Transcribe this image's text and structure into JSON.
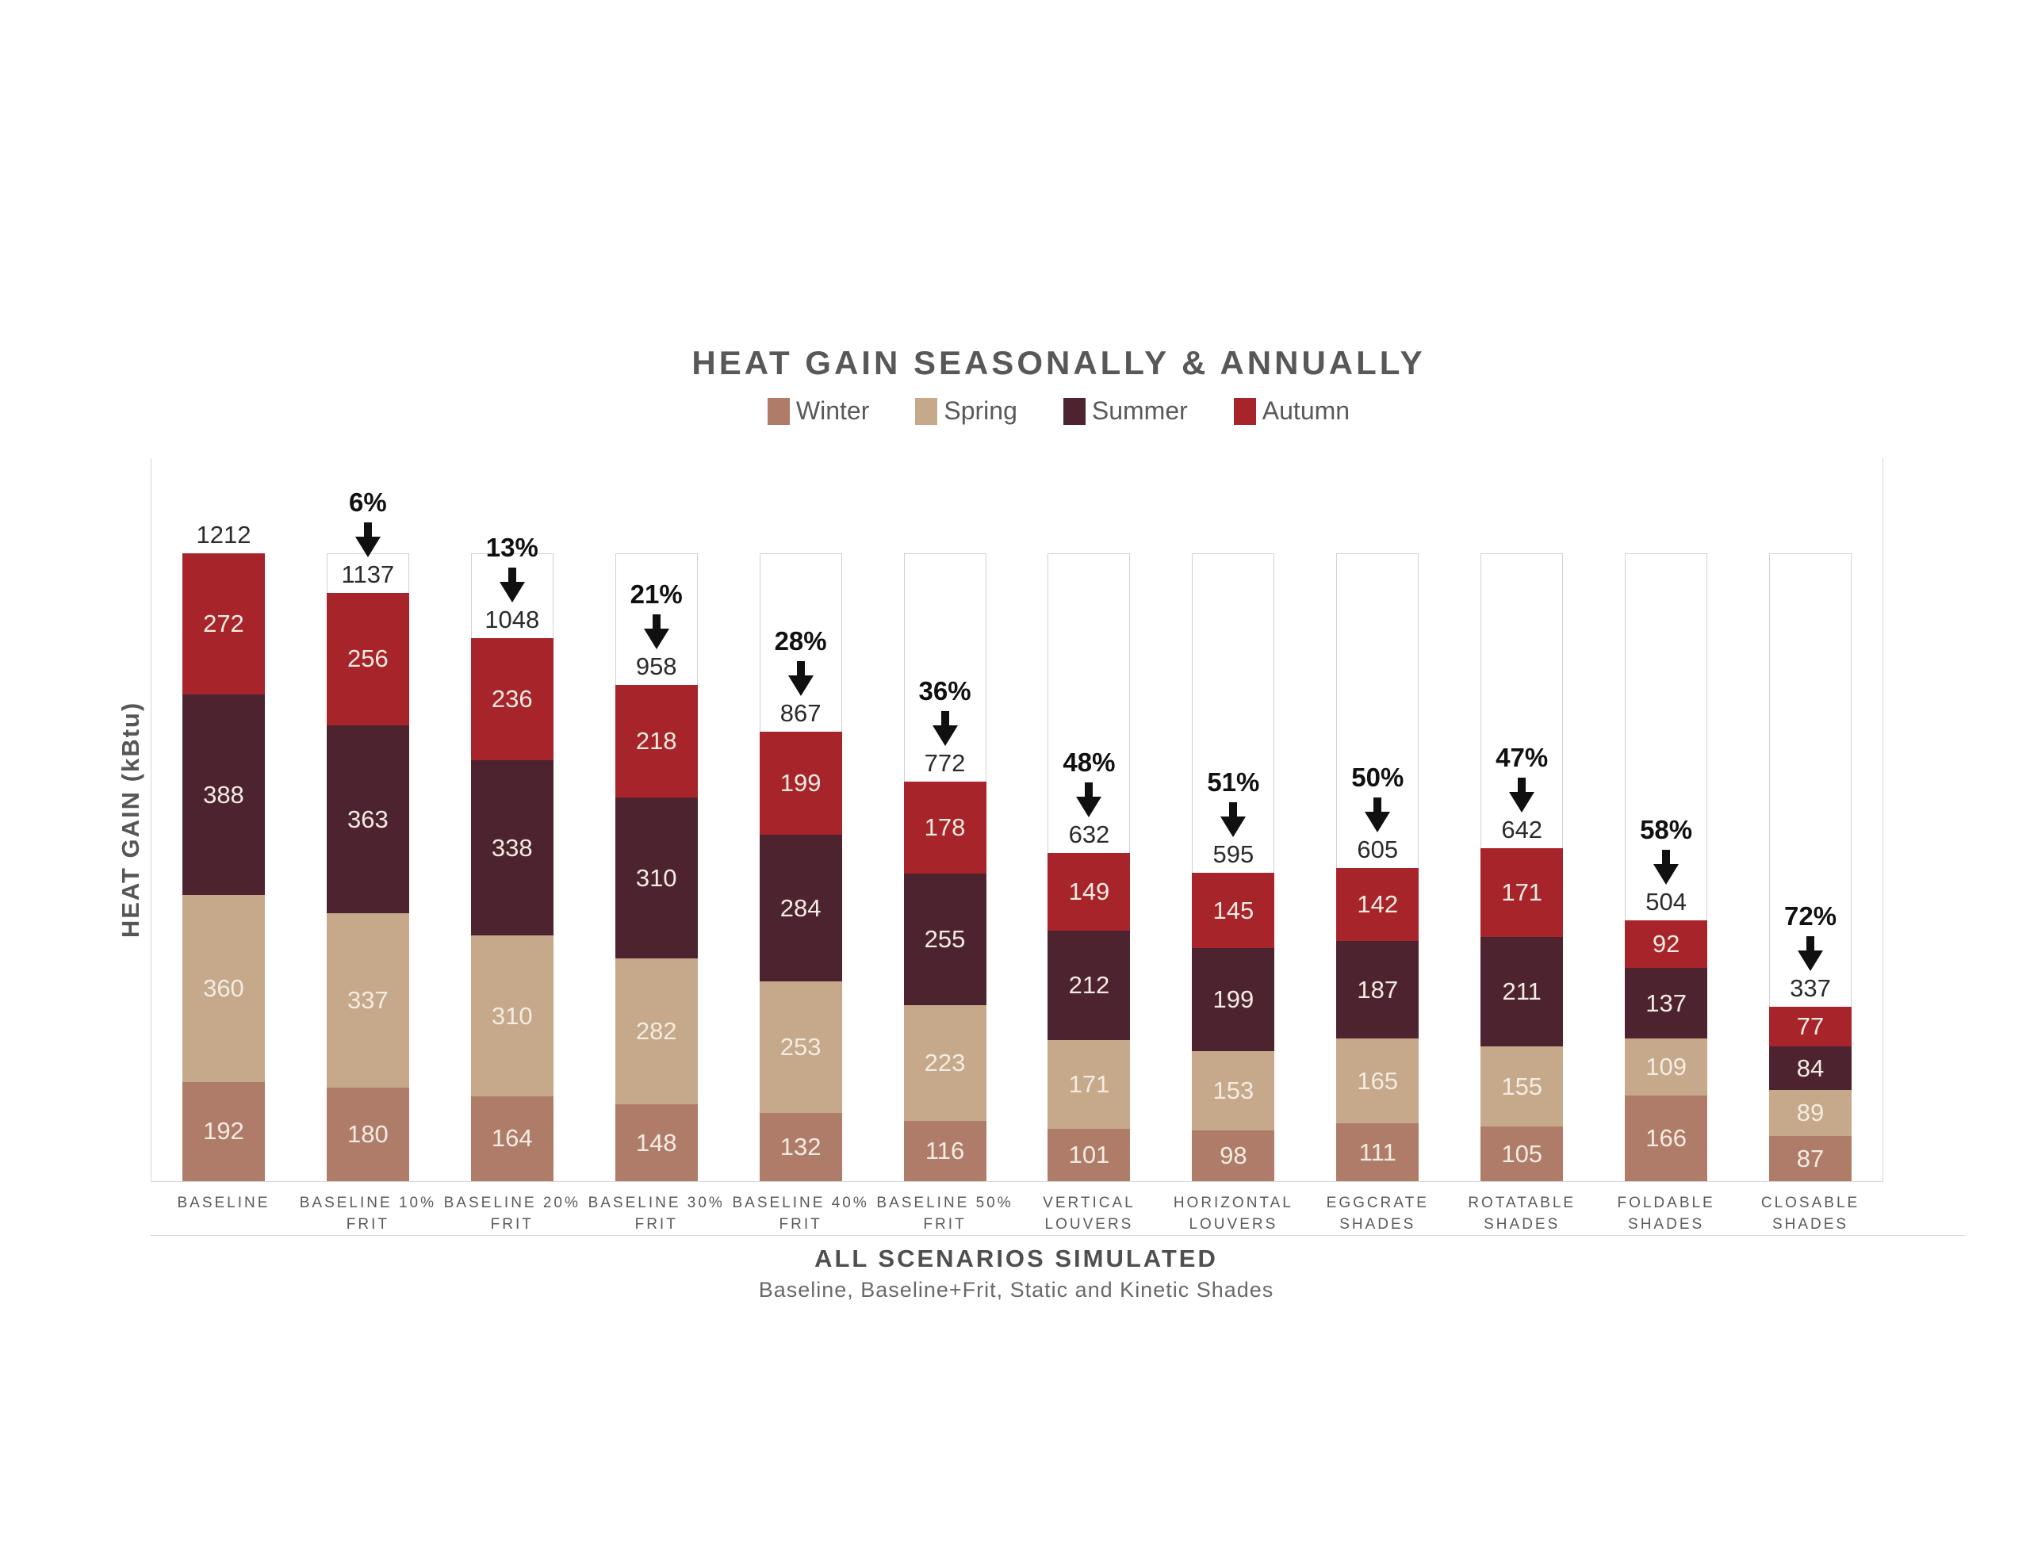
{
  "header": {
    "title": "HEAT GAIN SEASONALLY & ANNUALLY"
  },
  "legend": {
    "items": [
      {
        "label": "Winter",
        "color": "#B07C6A"
      },
      {
        "label": "Spring",
        "color": "#C6A88A"
      },
      {
        "label": "Summer",
        "color": "#4E2330"
      },
      {
        "label": "Autumn",
        "color": "#A8242B"
      }
    ]
  },
  "y_axis": {
    "label": "HEAT GAIN (kBtu)"
  },
  "x_axis": {
    "title": "ALL SCENARIOS SIMULATED",
    "subtitle": "Baseline, Baseline+Frit, Static and Kinetic Shades"
  },
  "chart_data": {
    "type": "bar",
    "stacked": true,
    "title": "HEAT GAIN SEASONALLY & ANNUALLY",
    "xlabel": "ALL SCENARIOS SIMULATED",
    "ylabel": "HEAT GAIN (kBtu)",
    "ylim": [
      0,
      1212
    ],
    "grid": false,
    "legend_position": "top",
    "categories": [
      "BASELINE",
      "BASELINE 10% FRIT",
      "BASELINE 20% FRIT",
      "BASELINE 30% FRIT",
      "BASELINE 40% FRIT",
      "BASELINE 50% FRIT",
      "VERTICAL LOUVERS",
      "HORIZONTAL LOUVERS",
      "EGGCRATE SHADES",
      "ROTATABLE SHADES",
      "FOLDABLE SHADES",
      "CLOSABLE SHADES"
    ],
    "category_lines": [
      [
        "BASELINE"
      ],
      [
        "BASELINE 10%",
        "FRIT"
      ],
      [
        "BASELINE 20%",
        "FRIT"
      ],
      [
        "BASELINE 30%",
        "FRIT"
      ],
      [
        "BASELINE 40%",
        "FRIT"
      ],
      [
        "BASELINE 50%",
        "FRIT"
      ],
      [
        "VERTICAL",
        "LOUVERS"
      ],
      [
        "HORIZONTAL",
        "LOUVERS"
      ],
      [
        "EGGCRATE",
        "SHADES"
      ],
      [
        "ROTATABLE",
        "SHADES"
      ],
      [
        "FOLDABLE",
        "SHADES"
      ],
      [
        "CLOSABLE",
        "SHADES"
      ]
    ],
    "series": [
      {
        "name": "Winter",
        "color": "#B07C6A",
        "values": [
          192,
          180,
          164,
          148,
          132,
          116,
          101,
          98,
          111,
          105,
          166,
          87
        ]
      },
      {
        "name": "Spring",
        "color": "#C6A88A",
        "values": [
          360,
          337,
          310,
          282,
          253,
          223,
          171,
          153,
          165,
          155,
          109,
          89
        ]
      },
      {
        "name": "Summer",
        "color": "#4E2330",
        "values": [
          388,
          363,
          338,
          310,
          284,
          255,
          212,
          199,
          187,
          211,
          137,
          84
        ]
      },
      {
        "name": "Autumn",
        "color": "#A8242B",
        "values": [
          272,
          256,
          236,
          218,
          199,
          178,
          149,
          145,
          142,
          171,
          92,
          77
        ]
      }
    ],
    "totals": [
      1212,
      1137,
      1048,
      958,
      867,
      772,
      632,
      595,
      605,
      642,
      504,
      337
    ],
    "reduction_labels": [
      "",
      "6%",
      "13%",
      "21%",
      "28%",
      "36%",
      "48%",
      "51%",
      "50%",
      "47%",
      "58%",
      "72%"
    ]
  },
  "style": {
    "segment_label_color": "#f3ece2",
    "annotation_color": "#101010",
    "total_color": "#2b2b2b",
    "axis_line_color": "#d9d7d4",
    "ghost_box_border": "#d3d1ce",
    "arrow_color": "#101010"
  }
}
